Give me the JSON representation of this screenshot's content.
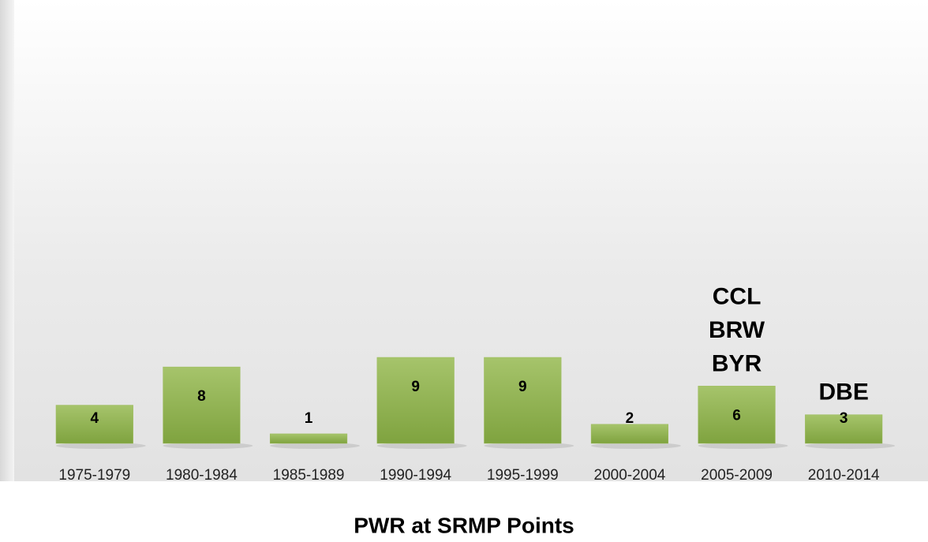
{
  "chart_data": {
    "type": "bar",
    "title": "PWR at SRMP Points",
    "categories": [
      "1975-1979",
      "1980-1984",
      "1985-1989",
      "1990-1994",
      "1995-1999",
      "2000-2004",
      "2005-2009",
      "2010-2014"
    ],
    "values": [
      4,
      8,
      1,
      9,
      9,
      2,
      6,
      3
    ],
    "color": "#9bbb59",
    "ylim": [
      0,
      45
    ],
    "annotations": [
      {
        "category": "2005-2009",
        "lines": [
          "CCL",
          "BRW",
          "BYR"
        ]
      },
      {
        "category": "2010-2014",
        "lines": [
          "DBE"
        ]
      }
    ]
  }
}
